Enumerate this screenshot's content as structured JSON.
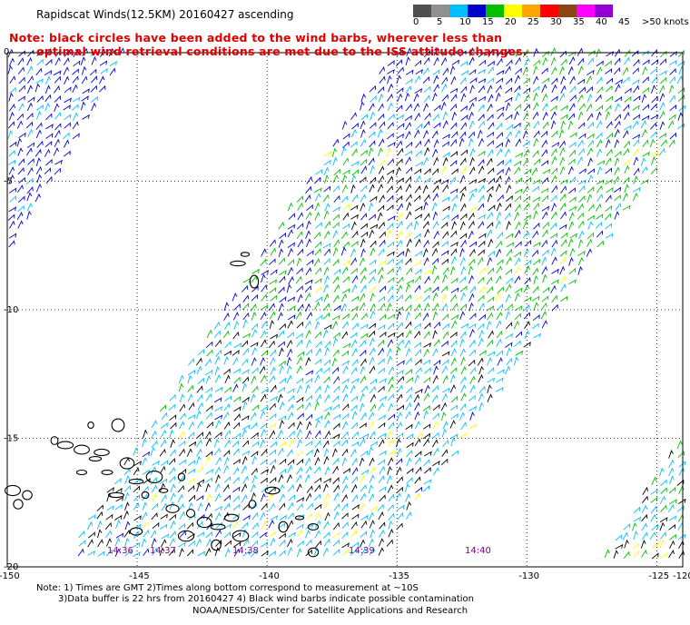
{
  "title": "Rapidscat Winds(12.5KM) 20160427 ascending",
  "note_line1": "Note: black circles have been added to the wind barbs, wherever less than",
  "note_line2": "optimal wind retrieval conditions are met due to the ISS attitude changes.",
  "legend": {
    "unit_label": ">50 knots",
    "ticks": [
      "0",
      "5",
      "10",
      "15",
      "20",
      "25",
      "30",
      "35",
      "40",
      "45"
    ],
    "colors": [
      "#505050",
      "#909090",
      "#00bfff",
      "#0000cd",
      "#00c000",
      "#ffff00",
      "#ffa500",
      "#ff0000",
      "#8b4513",
      "#ff00ff",
      "#9400d3"
    ]
  },
  "latitude_labels": [
    "0",
    "-5",
    "-10",
    "-15",
    "-20"
  ],
  "longitude_labels": [
    "-150",
    "-145",
    "-140",
    "-135",
    "-130",
    "-125",
    "-120"
  ],
  "time_labels": [
    "14:36",
    "14:37",
    "14:38",
    "14:39",
    "14:40"
  ],
  "footer": {
    "line1": "Note: 1) Times are GMT 2)Times along bottom correspond to measurement at ~10S",
    "line2": "3)Data buffer is 22 hrs from 20160427 4) Black wind barbs indicate possible contamination",
    "line3": "NOAA/NESDIS/Center for Satellite Applications and Research"
  },
  "map_extent": {
    "lon_min": -150,
    "lon_max": -124,
    "lat_min": -20,
    "lat_max": 0
  }
}
